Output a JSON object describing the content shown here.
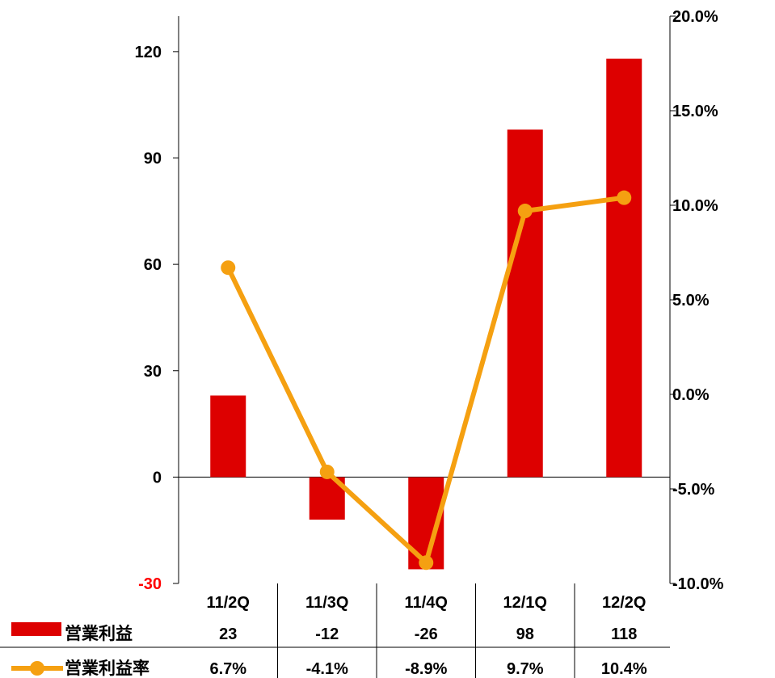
{
  "chart_data": {
    "type": "bar",
    "categories": [
      "11/2Q",
      "11/3Q",
      "11/4Q",
      "12/1Q",
      "12/2Q"
    ],
    "series": [
      {
        "name": "営業利益",
        "type": "bar",
        "axis": "left",
        "color": "#dd0000",
        "values": [
          23,
          -12,
          -26,
          98,
          118
        ],
        "labels": [
          "23",
          "-12",
          "-26",
          "98",
          "118"
        ]
      },
      {
        "name": "営業利益率",
        "type": "line",
        "axis": "right",
        "color": "#f5a011",
        "values": [
          6.7,
          -4.1,
          -8.9,
          9.7,
          10.4
        ],
        "labels": [
          "6.7%",
          "-4.1%",
          "-8.9%",
          "9.7%",
          "10.4%"
        ]
      }
    ],
    "y_left": {
      "ylim": [
        -30,
        130
      ],
      "ticks": [
        -30,
        0,
        30,
        60,
        90,
        120
      ],
      "tick_labels": [
        "-30",
        "0",
        "30",
        "60",
        "90",
        "120"
      ],
      "negative_tick_color": "#ff0000"
    },
    "y_right": {
      "ylim": [
        -10,
        20
      ],
      "ticks": [
        -10,
        -5,
        0,
        5,
        10,
        15,
        20
      ],
      "tick_labels": [
        "-10.0%",
        "-5.0%",
        "0.0%",
        "5.0%",
        "10.0%",
        "15.0%",
        "20.0%"
      ]
    },
    "grid": false,
    "legend": "data-table-left",
    "title": "",
    "xlabel": "",
    "ylabel": ""
  }
}
